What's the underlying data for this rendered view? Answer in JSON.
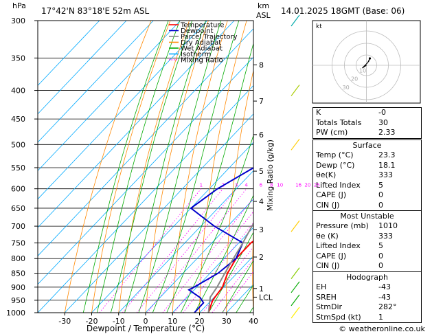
{
  "header": {
    "hpa_unit": "hPa",
    "location": "17°42'N  83°18'E  52m  ASL",
    "km_unit": "km",
    "asl_unit": "ASL",
    "valid_time": "14.01.2025  18GMT  (Base: 06)"
  },
  "legend": [
    {
      "label": "Temperature",
      "color": "#ff0000",
      "style": "solid"
    },
    {
      "label": "Dewpoint",
      "color": "#0000cc",
      "style": "solid"
    },
    {
      "label": "Parcel Trajectory",
      "color": "#888888",
      "style": "solid"
    },
    {
      "label": "Dry Adiabat",
      "color": "#ff8800",
      "style": "solid"
    },
    {
      "label": "Wet Adiabat",
      "color": "#00aa00",
      "style": "solid"
    },
    {
      "label": "Isotherm",
      "color": "#00aaff",
      "style": "solid"
    },
    {
      "label": "Mixing Ratio",
      "color": "#ff00ff",
      "style": "dotted"
    }
  ],
  "chart_data": {
    "type": "line",
    "title": "",
    "xlabel": "Dewpoint / Temperature (°C)",
    "ylabel": "hPa",
    "x_ticks": [
      -30,
      -20,
      -10,
      0,
      10,
      20,
      30,
      40
    ],
    "pressure_levels": [
      300,
      350,
      400,
      450,
      500,
      550,
      600,
      650,
      700,
      750,
      800,
      850,
      900,
      950,
      1000
    ],
    "height_axis": {
      "label": "km ASL",
      "ticks": [
        {
          "label": "8",
          "p": 360
        },
        {
          "label": "7",
          "p": 418
        },
        {
          "label": "6",
          "p": 480
        },
        {
          "label": "5",
          "p": 558
        },
        {
          "label": "4",
          "p": 632
        },
        {
          "label": "3",
          "p": 710
        },
        {
          "label": "2",
          "p": 795
        },
        {
          "label": "1",
          "p": 905
        },
        {
          "label": "LCL",
          "p": 938
        }
      ]
    },
    "mixing_ratio_axis_label": "Mixing Ratio (g/kg)",
    "mixing_ratio_labels": [
      "1",
      "2",
      "3",
      "4",
      "6",
      "8",
      "10",
      "16",
      "20",
      "25"
    ],
    "mixing_ratio_values": [
      1,
      2,
      3,
      4,
      6,
      8,
      10,
      16,
      20,
      25
    ],
    "series": [
      {
        "name": "Temperature",
        "color": "#ff0000",
        "points": [
          [
            1000,
            23.3
          ],
          [
            950,
            20.5
          ],
          [
            900,
            19.5
          ],
          [
            850,
            16.5
          ],
          [
            800,
            14.5
          ],
          [
            750,
            14.5
          ],
          [
            700,
            17.5
          ],
          [
            650,
            18.5
          ],
          [
            600,
            18.5
          ],
          [
            550,
            16.0
          ],
          [
            500,
            11.0
          ],
          [
            450,
            6.0
          ],
          [
            400,
            3.0
          ],
          [
            350,
            -2.0
          ],
          [
            300,
            -7.0
          ]
        ]
      },
      {
        "name": "Dewpoint",
        "color": "#0000cc",
        "points": [
          [
            1000,
            18.1
          ],
          [
            960,
            18.0
          ],
          [
            940,
            15.0
          ],
          [
            910,
            8.0
          ],
          [
            900,
            9.0
          ],
          [
            850,
            13.0
          ],
          [
            800,
            14.5
          ],
          [
            750,
            11.5
          ],
          [
            700,
            -5.0
          ],
          [
            650,
            -20.0
          ],
          [
            600,
            -17.0
          ],
          [
            550,
            -11.0
          ],
          [
            500,
            -8.0
          ],
          [
            450,
            -9.0
          ],
          [
            400,
            -9.0
          ],
          [
            350,
            -9.0
          ],
          [
            330,
            -3.0
          ],
          [
            300,
            0.0
          ]
        ]
      },
      {
        "name": "Parcel Trajectory",
        "color": "#888888",
        "points": [
          [
            1000,
            23.3
          ],
          [
            938,
            18.5
          ],
          [
            900,
            17.5
          ],
          [
            850,
            15.5
          ],
          [
            800,
            13.5
          ],
          [
            750,
            11.5
          ],
          [
            700,
            9.0
          ],
          [
            650,
            6.5
          ],
          [
            600,
            3.5
          ],
          [
            550,
            0.0
          ],
          [
            500,
            -3.5
          ],
          [
            450,
            -7.5
          ],
          [
            400,
            -12.0
          ],
          [
            350,
            -17.0
          ],
          [
            300,
            -23.0
          ]
        ]
      }
    ],
    "grid": true
  },
  "hodograph": {
    "unit_label": "kt",
    "ring_labels": [
      "10",
      "20",
      "30"
    ]
  },
  "stats": {
    "indices": [
      {
        "label": "K",
        "value": "-0"
      },
      {
        "label": "Totals Totals",
        "value": "30"
      },
      {
        "label": "PW (cm)",
        "value": "2.33"
      }
    ],
    "surface_title": "Surface",
    "surface": [
      {
        "label": "Temp (°C)",
        "value": "23.3"
      },
      {
        "label": "Dewp (°C)",
        "value": "18.1"
      },
      {
        "label": "θe(K)",
        "value": "333"
      },
      {
        "label": "Lifted Index",
        "value": "5"
      },
      {
        "label": "CAPE (J)",
        "value": "0"
      },
      {
        "label": "CIN (J)",
        "value": "0"
      }
    ],
    "mu_title": "Most Unstable",
    "most_unstable": [
      {
        "label": "Pressure (mb)",
        "value": "1010"
      },
      {
        "label": "θe (K)",
        "value": "333"
      },
      {
        "label": "Lifted Index",
        "value": "5"
      },
      {
        "label": "CAPE (J)",
        "value": "0"
      },
      {
        "label": "CIN (J)",
        "value": "0"
      }
    ],
    "hodo_title": "Hodograph",
    "hodograph_stats": [
      {
        "label": "EH",
        "value": "-43"
      },
      {
        "label": "SREH",
        "value": "-43"
      },
      {
        "label": "StmDir",
        "value": "282°"
      },
      {
        "label": "StmSpd (kt)",
        "value": "1"
      }
    ]
  },
  "footer": {
    "copyright": "© weatheronline.co.uk"
  }
}
